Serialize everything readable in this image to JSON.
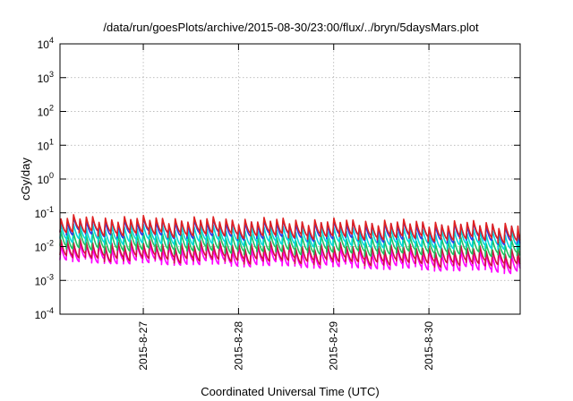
{
  "chart_data": {
    "type": "line",
    "title": "/data/run/goesPlots/archive/2015-08-30/23:00/flux/../bryn/5daysMars.plot",
    "xlabel": "Coordinated Universal Time (UTC)",
    "ylabel": "cGy/day",
    "yscale": "log",
    "ylim": [
      0.0001,
      10000
    ],
    "y_ticks": [
      {
        "base": "10",
        "exp": "-4"
      },
      {
        "base": "10",
        "exp": "-3"
      },
      {
        "base": "10",
        "exp": "-2"
      },
      {
        "base": "10",
        "exp": "-1"
      },
      {
        "base": "10",
        "exp": "0"
      },
      {
        "base": "10",
        "exp": "1"
      },
      {
        "base": "10",
        "exp": "2"
      },
      {
        "base": "10",
        "exp": "3"
      },
      {
        "base": "10",
        "exp": "4"
      }
    ],
    "x_range": [
      "2015-08-26 03:00",
      "2015-08-30 23:00"
    ],
    "x_ticks": [
      "2015-8-27",
      "2015-8-28",
      "2015-8-29",
      "2015-8-30"
    ],
    "grid": true,
    "legend": "none",
    "pattern": {
      "period_hours": 1.6,
      "description": "sawtooth: sharp rise at start of each period, then decay"
    },
    "series": [
      {
        "color": "#ff00ff",
        "peak": [
          0.011,
          0.006
        ],
        "trough": [
          0.004,
          0.002
        ]
      },
      {
        "color": "#d01040",
        "peak": [
          0.014,
          0.008
        ],
        "trough": [
          0.005,
          0.003
        ]
      },
      {
        "color": "#20c060",
        "peak": [
          0.025,
          0.014
        ],
        "trough": [
          0.009,
          0.006
        ]
      },
      {
        "color": "#00d8d8",
        "peak": [
          0.04,
          0.025
        ],
        "trough": [
          0.015,
          0.01
        ]
      },
      {
        "color": "#3040e0",
        "peak": [
          0.06,
          0.04
        ],
        "trough": [
          0.025,
          0.015
        ]
      },
      {
        "color": "#e02020",
        "peak": [
          0.07,
          0.045
        ],
        "trough": [
          0.028,
          0.017
        ]
      }
    ]
  }
}
